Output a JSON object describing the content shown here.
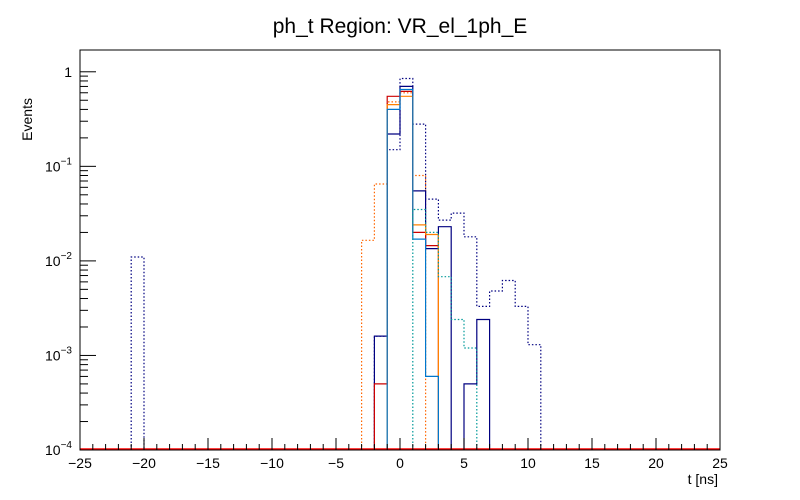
{
  "chart_data": {
    "type": "histogram",
    "title": "ph_t Region: VR_el_1ph_E",
    "xlabel": "t [ns]",
    "ylabel": "Events",
    "xlim": [
      -25,
      25
    ],
    "ylim": [
      0.0001,
      1.7
    ],
    "yscale": "log",
    "bin_width": 1,
    "xticks": [
      -25,
      -20,
      -15,
      -10,
      -5,
      0,
      5,
      10,
      15,
      20,
      25
    ],
    "yticks": [
      {
        "value": 0.0001,
        "base": "10",
        "exp": "−4"
      },
      {
        "value": 0.001,
        "base": "10",
        "exp": "−3"
      },
      {
        "value": 0.01,
        "base": "10",
        "exp": "−2"
      },
      {
        "value": 0.1,
        "base": "10",
        "exp": "−1"
      },
      {
        "value": 1,
        "label": "1"
      }
    ],
    "series": [
      {
        "name": "dotted-navy",
        "color": "#000080",
        "style": "dotted",
        "bins": [
          {
            "x": -21,
            "y": 0.011
          },
          {
            "x": -2,
            "y": 0.0016
          },
          {
            "x": -1,
            "y": 0.15
          },
          {
            "x": 0,
            "y": 0.85
          },
          {
            "x": 1,
            "y": 0.28
          },
          {
            "x": 2,
            "y": 0.045
          },
          {
            "x": 3,
            "y": 0.027
          },
          {
            "x": 4,
            "y": 0.032
          },
          {
            "x": 5,
            "y": 0.018
          },
          {
            "x": 6,
            "y": 0.0033
          },
          {
            "x": 7,
            "y": 0.0048
          },
          {
            "x": 8,
            "y": 0.0062
          },
          {
            "x": 9,
            "y": 0.0033
          },
          {
            "x": 10,
            "y": 0.0013
          }
        ]
      },
      {
        "name": "dotted-orange",
        "color": "#ff6600",
        "style": "dotted",
        "bins": [
          {
            "x": -3,
            "y": 0.0165
          },
          {
            "x": -2,
            "y": 0.065
          },
          {
            "x": -1,
            "y": 0.48
          },
          {
            "x": 0,
            "y": 0.6
          },
          {
            "x": 1,
            "y": 0.08
          }
        ]
      },
      {
        "name": "solid-navy",
        "color": "#000080",
        "style": "solid",
        "bins": [
          {
            "x": -2,
            "y": 0.0016
          },
          {
            "x": -1,
            "y": 0.22
          },
          {
            "x": 0,
            "y": 0.7
          },
          {
            "x": 1,
            "y": 0.055
          },
          {
            "x": 2,
            "y": 0.0135
          },
          {
            "x": 3,
            "y": 0.023
          },
          {
            "x": 5,
            "y": 0.0005
          },
          {
            "x": 6,
            "y": 0.0024
          }
        ]
      },
      {
        "name": "solid-red",
        "color": "#cc0000",
        "style": "solid",
        "bins": [
          {
            "x": -2,
            "y": 0.0005
          },
          {
            "x": -1,
            "y": 0.55
          },
          {
            "x": 0,
            "y": 0.62
          },
          {
            "x": 1,
            "y": 0.02
          },
          {
            "x": 2,
            "y": 0.0145
          }
        ]
      },
      {
        "name": "solid-orange",
        "color": "#ff8000",
        "style": "solid",
        "bins": [
          {
            "x": -1,
            "y": 0.45
          },
          {
            "x": 0,
            "y": 0.55
          },
          {
            "x": 1,
            "y": 0.024
          },
          {
            "x": 2,
            "y": 0.019
          }
        ]
      },
      {
        "name": "solid-blue",
        "color": "#0077cc",
        "style": "solid",
        "bins": [
          {
            "x": -1,
            "y": 0.4
          },
          {
            "x": 0,
            "y": 0.65
          },
          {
            "x": 1,
            "y": 0.017
          },
          {
            "x": 2,
            "y": 0.0006
          }
        ]
      },
      {
        "name": "dotted-teal",
        "color": "#009999",
        "style": "dotted",
        "bins": [
          {
            "x": 1,
            "y": 0.035
          },
          {
            "x": 2,
            "y": 0.02
          },
          {
            "x": 3,
            "y": 0.0068
          },
          {
            "x": 4,
            "y": 0.0024
          },
          {
            "x": 5,
            "y": 0.0012
          }
        ]
      },
      {
        "name": "baseline-red",
        "color": "#ff0000",
        "style": "solid",
        "baseline": true,
        "bins": []
      }
    ]
  }
}
